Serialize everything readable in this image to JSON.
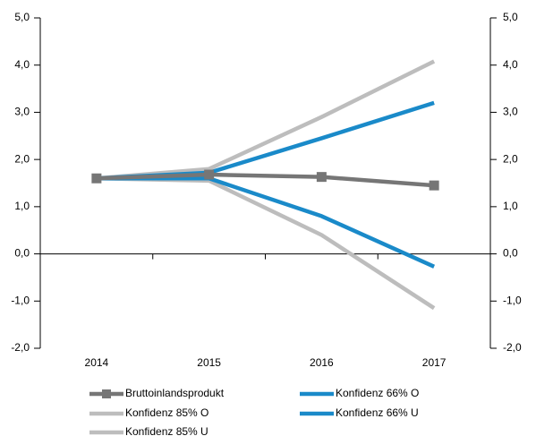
{
  "chart_data": {
    "type": "line",
    "categories": [
      "2014",
      "2015",
      "2016",
      "2017"
    ],
    "series": [
      {
        "name": "Bruttoinlandsprodukt",
        "color": "#767676",
        "marker": "square",
        "values": [
          1.6,
          1.68,
          1.63,
          1.45
        ]
      },
      {
        "name": "Konfidenz 66% O",
        "color": "#1a8ac9",
        "values": [
          1.6,
          1.72,
          2.45,
          3.2
        ]
      },
      {
        "name": "Konfidenz 85% O",
        "color": "#bdbdbd",
        "values": [
          1.6,
          1.8,
          2.9,
          4.08
        ]
      },
      {
        "name": "Konfidenz 66% U",
        "color": "#1a8ac9",
        "values": [
          1.6,
          1.6,
          0.8,
          -0.27
        ]
      },
      {
        "name": "Konfidenz 85% U",
        "color": "#bdbdbd",
        "values": [
          1.6,
          1.55,
          0.4,
          -1.15
        ]
      }
    ],
    "ylim": [
      -2,
      5
    ],
    "yticks": [
      {
        "value": -2,
        "label": "-2,0"
      },
      {
        "value": -1,
        "label": "-1,0"
      },
      {
        "value": 0,
        "label": "0,0"
      },
      {
        "value": 1,
        "label": "1,0"
      },
      {
        "value": 2,
        "label": "2,0"
      },
      {
        "value": 3,
        "label": "3,0"
      },
      {
        "value": 4,
        "label": "4,0"
      },
      {
        "value": 5,
        "label": "5,0"
      }
    ],
    "y2lim": [
      -2,
      5
    ],
    "y2ticks": [
      {
        "value": -2,
        "label": "-2,0"
      },
      {
        "value": -1,
        "label": "-1,0"
      },
      {
        "value": 0,
        "label": "0,0"
      },
      {
        "value": 1,
        "label": "1,0"
      },
      {
        "value": 2,
        "label": "2,0"
      },
      {
        "value": 3,
        "label": "3,0"
      },
      {
        "value": 4,
        "label": "4,0"
      },
      {
        "value": 5,
        "label": "5,0"
      }
    ],
    "grid": false,
    "legend": "bottom"
  }
}
